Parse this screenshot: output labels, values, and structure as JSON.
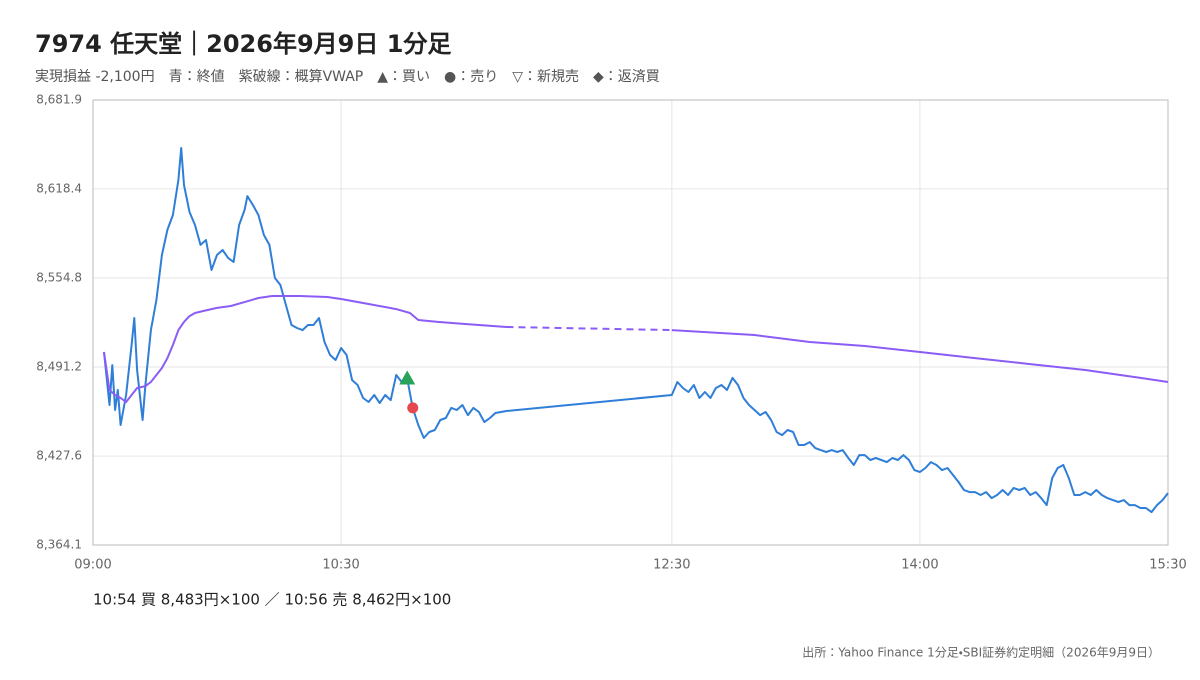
{
  "chart_data": {
    "type": "line",
    "title": "7974 任天堂｜2026年9月9日 1分足",
    "subtitle": "実現損益 -2,100円　青：終値　紫破線：概算VWAP　▲：買い　●：売り　▽：新規売　◆：返済買",
    "trade_note": "10:54 買 8,483円×100 ／ 10:56 売 8,462円×100",
    "source": "出所：Yahoo Finance 1分足・SBI証券約定明細（2026年9月9日）",
    "xlim": [
      "09:00",
      "15:30"
    ],
    "xticks": [
      "09:00",
      "10:30",
      "12:30",
      "14:00",
      "15:30"
    ],
    "ylim": [
      8364.1,
      8681.9
    ],
    "yticks": [
      {
        "value": 8364.1,
        "label": "8,364.1"
      },
      {
        "value": 8427.6,
        "label": "8,427.6"
      },
      {
        "value": 8491.2,
        "label": "8,491.2"
      },
      {
        "value": 8554.8,
        "label": "8,554.8"
      },
      {
        "value": 8618.4,
        "label": "8,618.4"
      },
      {
        "value": 8681.9,
        "label": "8,681.9"
      }
    ],
    "grid": true,
    "series": [
      {
        "color": "#2f7ed8",
        "x": [
          "09:04",
          "09:06",
          "09:07",
          "09:08",
          "09:09",
          "09:10",
          "09:12",
          "09:14",
          "09:15",
          "09:16",
          "09:18",
          "09:19",
          "09:21",
          "09:23",
          "09:25",
          "09:27",
          "09:29",
          "09:31",
          "09:32",
          "09:33",
          "09:35",
          "09:37",
          "09:39",
          "09:41",
          "09:43",
          "09:45",
          "09:47",
          "09:49",
          "09:51",
          "09:53",
          "09:55",
          "09:56",
          "09:58",
          "10:00",
          "10:02",
          "10:04",
          "10:06",
          "10:08",
          "10:10",
          "10:12",
          "10:14",
          "10:16",
          "10:18",
          "10:20",
          "10:22",
          "10:24",
          "10:26",
          "10:28",
          "10:30",
          "10:32",
          "10:34",
          "10:36",
          "10:38",
          "10:40",
          "10:42",
          "10:44",
          "10:46",
          "10:48",
          "10:50",
          "10:52",
          "10:54",
          "10:56",
          "10:58",
          "11:00",
          "11:02",
          "11:04",
          "11:06",
          "11:08",
          "11:10",
          "11:12",
          "11:14",
          "11:16",
          "11:18",
          "11:20",
          "11:22",
          "11:24",
          "11:26",
          "11:28",
          "11:30",
          "12:30",
          "12:32",
          "12:34",
          "12:36",
          "12:38",
          "12:40",
          "12:42",
          "12:44",
          "12:46",
          "12:48",
          "12:50",
          "12:52",
          "12:54",
          "12:56",
          "12:58",
          "13:00",
          "13:02",
          "13:04",
          "13:06",
          "13:08",
          "13:10",
          "13:12",
          "13:14",
          "13:16",
          "13:18",
          "13:20",
          "13:22",
          "13:24",
          "13:26",
          "13:28",
          "13:30",
          "13:32",
          "13:34",
          "13:36",
          "13:38",
          "13:40",
          "13:42",
          "13:44",
          "13:46",
          "13:48",
          "13:50",
          "13:52",
          "13:54",
          "13:56",
          "13:58",
          "14:00",
          "14:02",
          "14:04",
          "14:06",
          "14:08",
          "14:10",
          "14:12",
          "14:14",
          "14:16",
          "14:18",
          "14:20",
          "14:22",
          "14:24",
          "14:26",
          "14:28",
          "14:30",
          "14:32",
          "14:34",
          "14:36",
          "14:38",
          "14:40",
          "14:42",
          "14:44",
          "14:46",
          "14:48",
          "14:50",
          "14:52",
          "14:54",
          "14:56",
          "14:58",
          "15:00",
          "15:02",
          "15:04",
          "15:06",
          "15:08",
          "15:10",
          "15:12",
          "15:14",
          "15:16",
          "15:18",
          "15:20",
          "15:22",
          "15:24",
          "15:26",
          "15:28",
          "15:30"
        ],
        "values": [
          8501.9,
          8464.1,
          8492.6,
          8460.5,
          8474.8,
          8449.8,
          8471.2,
          8506.9,
          8526.2,
          8489.1,
          8453.4,
          8478.4,
          8517.6,
          8539.1,
          8571.2,
          8589.1,
          8599.8,
          8624.8,
          8647.6,
          8621.2,
          8601.9,
          8592.6,
          8578.4,
          8581.9,
          8560.5,
          8571.2,
          8574.8,
          8569.1,
          8566.2,
          8592.6,
          8603.4,
          8613.3,
          8606.9,
          8599.8,
          8585.5,
          8578.4,
          8554.8,
          8549.8,
          8535.5,
          8521.2,
          8519.1,
          8517.6,
          8521.2,
          8521.2,
          8526.2,
          8509.1,
          8499.8,
          8496.2,
          8504.8,
          8499.8,
          8481.9,
          8478.4,
          8469.1,
          8466.2,
          8471.2,
          8465.5,
          8471.2,
          8467.6,
          8485.5,
          8480.5,
          8483,
          8462,
          8449.8,
          8440.5,
          8444.8,
          8446.2,
          8453.4,
          8454.8,
          8462,
          8460.5,
          8464.1,
          8456.9,
          8462,
          8459.1,
          8451.9,
          8454.8,
          8458.4,
          8459.1,
          8459.8,
          8471.2,
          8480.5,
          8476.2,
          8473.4,
          8478.4,
          8469.1,
          8473.4,
          8469.1,
          8476.2,
          8478.4,
          8474.8,
          8483.4,
          8478.4,
          8469.1,
          8464.1,
          8460.5,
          8456.9,
          8459.1,
          8453.4,
          8444.8,
          8442.6,
          8446.2,
          8444.8,
          8435.5,
          8435.5,
          8437.6,
          8433.3,
          8431.9,
          8430.5,
          8431.9,
          8430.5,
          8431.9,
          8426.2,
          8421.2,
          8428.3,
          8428.3,
          8424.8,
          8426.2,
          8424.8,
          8423.3,
          8426.2,
          8424.8,
          8428.3,
          8424.8,
          8417.6,
          8416.2,
          8419.1,
          8423.3,
          8421.2,
          8417.6,
          8419.1,
          8414.1,
          8409.1,
          8403.4,
          8401.9,
          8401.9,
          8399.8,
          8401.9,
          8397.6,
          8399.8,
          8403.4,
          8399.8,
          8404.8,
          8403.4,
          8404.8,
          8399.8,
          8401.9,
          8397.6,
          8392.6,
          8411.9,
          8419.1,
          8421.2,
          8411.9,
          8399.8,
          8399.8,
          8401.9,
          8399.8,
          8403.4,
          8399.8,
          8397.6,
          8396.2,
          8394.8,
          8396.2,
          8392.6,
          8392.6,
          8390.5,
          8390.5,
          8387.6,
          8392.6,
          8396.2,
          8401.2
        ]
      },
      {
        "color": "#8b5cf6",
        "x": [
          "09:04",
          "09:06",
          "09:08",
          "09:10",
          "09:12",
          "09:14",
          "09:16",
          "09:19",
          "09:21",
          "09:23",
          "09:25",
          "09:27",
          "09:29",
          "09:31",
          "09:33",
          "09:35",
          "09:37",
          "09:40",
          "09:45",
          "09:50",
          "09:55",
          "10:00",
          "10:05",
          "10:15",
          "10:25",
          "10:30",
          "10:40",
          "10:50",
          "10:55",
          "10:58",
          "11:05",
          "11:15",
          "11:30",
          "12:30",
          "13:00",
          "13:20",
          "13:40",
          "14:00",
          "14:20",
          "14:40",
          "15:00",
          "15:20",
          "15:30"
        ],
        "values": [
          8501.9,
          8474.8,
          8471.2,
          8469.1,
          8466.2,
          8471.2,
          8476.2,
          8477.6,
          8480.5,
          8485.5,
          8490.5,
          8497.6,
          8506.9,
          8517.6,
          8523.4,
          8527.6,
          8529.8,
          8531.2,
          8533.4,
          8534.8,
          8537.6,
          8540.5,
          8541.9,
          8541.9,
          8541.2,
          8539.8,
          8536.2,
          8532.6,
          8529.8,
          8524.8,
          8523.4,
          8521.9,
          8519.8,
          8517.6,
          8514.1,
          8509.1,
          8506.2,
          8501.9,
          8497.6,
          8493.3,
          8489.1,
          8483.4,
          8480.5
        ]
      }
    ],
    "markers": [
      {
        "symbol": "triangle",
        "color": "#27a35a",
        "x": "10:54",
        "value": 8483
      },
      {
        "symbol": "circle",
        "color": "#e5484d",
        "x": "10:56",
        "value": 8462
      }
    ]
  }
}
